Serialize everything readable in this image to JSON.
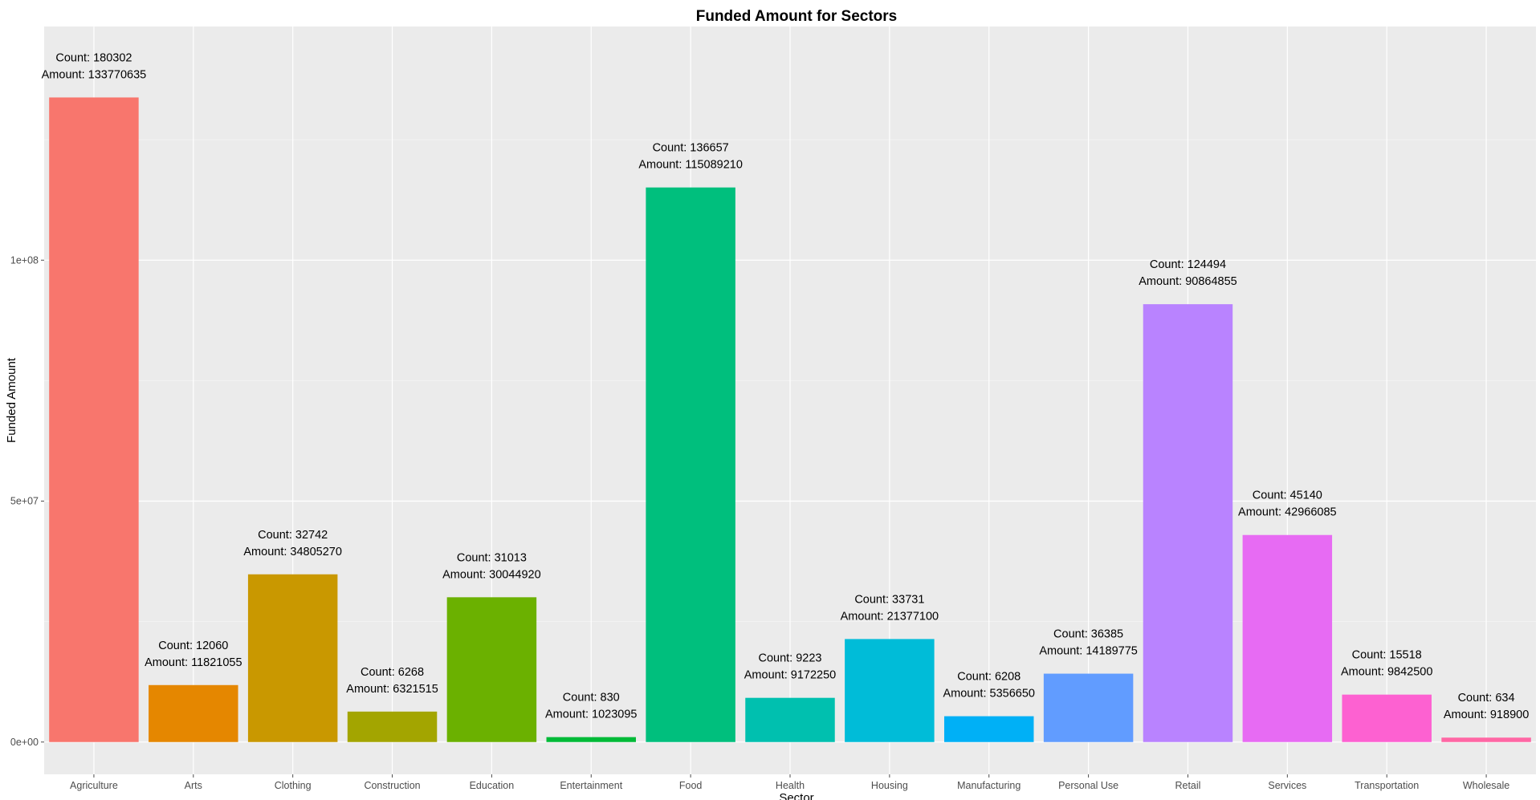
{
  "chart_data": {
    "type": "bar",
    "title": "Funded Amount for Sectors",
    "xlabel": "Sector",
    "ylabel": "Funded Amount",
    "categories": [
      "Agriculture",
      "Arts",
      "Clothing",
      "Construction",
      "Education",
      "Entertainment",
      "Food",
      "Health",
      "Housing",
      "Manufacturing",
      "Personal Use",
      "Retail",
      "Services",
      "Transportation",
      "Wholesale"
    ],
    "values": [
      133770635,
      11821055,
      34805270,
      6321515,
      30044920,
      1023095,
      115089210,
      9172250,
      21377100,
      5356650,
      14189775,
      90864855,
      42966085,
      9842500,
      918900
    ],
    "counts": [
      180302,
      12060,
      32742,
      6268,
      31013,
      830,
      136657,
      9223,
      33731,
      6208,
      36385,
      124494,
      45140,
      15518,
      634
    ],
    "labels": [
      {
        "count": "Count: 180302",
        "amount": "Amount: 133770635"
      },
      {
        "count": "Count: 12060",
        "amount": "Amount: 11821055"
      },
      {
        "count": "Count: 32742",
        "amount": "Amount: 34805270"
      },
      {
        "count": "Count: 6268",
        "amount": "Amount: 6321515"
      },
      {
        "count": "Count: 31013",
        "amount": "Amount: 30044920"
      },
      {
        "count": "Count: 830",
        "amount": "Amount: 1023095"
      },
      {
        "count": "Count: 136657",
        "amount": "Amount: 115089210"
      },
      {
        "count": "Count: 9223",
        "amount": "Amount: 9172250"
      },
      {
        "count": "Count: 33731",
        "amount": "Amount: 21377100"
      },
      {
        "count": "Count: 6208",
        "amount": "Amount: 5356650"
      },
      {
        "count": "Count: 36385",
        "amount": "Amount: 14189775"
      },
      {
        "count": "Count: 124494",
        "amount": "Amount: 90864855"
      },
      {
        "count": "Count: 45140",
        "amount": "Amount: 42966085"
      },
      {
        "count": "Count: 15518",
        "amount": "Amount: 9842500"
      },
      {
        "count": "Count: 634",
        "amount": "Amount: 918900"
      }
    ],
    "colors": [
      "#F8766D",
      "#E58700",
      "#C99800",
      "#A3A500",
      "#6BB100",
      "#00BA38",
      "#00BF7D",
      "#00C0AF",
      "#00BCD8",
      "#00B0F6",
      "#619CFF",
      "#B983FF",
      "#E76BF3",
      "#FD61D1",
      "#FF67A4"
    ],
    "yticks": [
      0,
      50000000,
      100000000
    ],
    "ytick_labels": [
      "0e+00",
      "5e+07",
      "1e+08"
    ],
    "ylim": [
      -6700000,
      148500000
    ],
    "panel_background": "#EBEBEB",
    "grid": true,
    "legend": "none"
  }
}
